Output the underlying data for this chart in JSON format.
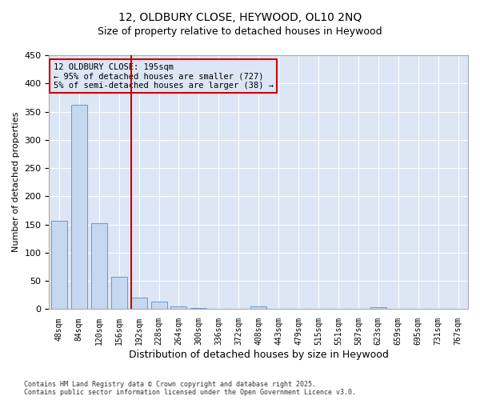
{
  "title_line1": "12, OLDBURY CLOSE, HEYWOOD, OL10 2NQ",
  "title_line2": "Size of property relative to detached houses in Heywood",
  "xlabel": "Distribution of detached houses by size in Heywood",
  "ylabel": "Number of detached properties",
  "categories": [
    "48sqm",
    "84sqm",
    "120sqm",
    "156sqm",
    "192sqm",
    "228sqm",
    "264sqm",
    "300sqm",
    "336sqm",
    "372sqm",
    "408sqm",
    "443sqm",
    "479sqm",
    "515sqm",
    "551sqm",
    "587sqm",
    "623sqm",
    "659sqm",
    "695sqm",
    "731sqm",
    "767sqm"
  ],
  "values": [
    157,
    362,
    153,
    57,
    20,
    13,
    5,
    2,
    0,
    0,
    5,
    0,
    0,
    0,
    0,
    0,
    3,
    0,
    0,
    0,
    0
  ],
  "bar_color": "#c5d8f0",
  "bar_edge_color": "#6699cc",
  "vline_color": "#cc0000",
  "annotation_text": "12 OLDBURY CLOSE: 195sqm\n← 95% of detached houses are smaller (727)\n5% of semi-detached houses are larger (38) →",
  "annotation_box_color": "#cc0000",
  "ylim": [
    0,
    450
  ],
  "yticks": [
    0,
    50,
    100,
    150,
    200,
    250,
    300,
    350,
    400,
    450
  ],
  "plot_bg_color": "#dce6f5",
  "fig_bg_color": "#ffffff",
  "grid_color": "#ffffff",
  "footnote": "Contains HM Land Registry data © Crown copyright and database right 2025.\nContains public sector information licensed under the Open Government Licence v3.0."
}
